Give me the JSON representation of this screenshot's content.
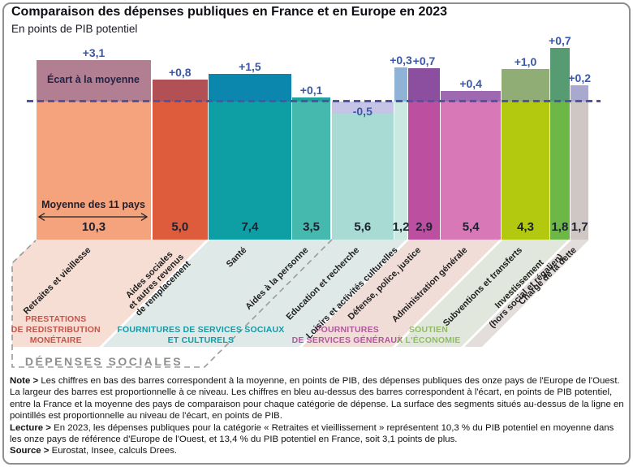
{
  "header": {
    "title": "Comparaison des dépenses publiques en France et en Europe en 2023",
    "subtitle": "En points de PIB potentiel"
  },
  "chart_data": {
    "type": "bar",
    "title": "Comparaison des dépenses publiques en France et en Europe en 2023",
    "subtitle": "En points de PIB potentiel",
    "unit": "points de PIB potentiel",
    "gap_label": "Écart à la moyenne",
    "mean_label": "Moyenne des 11 pays",
    "meta_label": "DÉPENSES SOCIALES",
    "mean_line_color": "#5055a0",
    "gap_text_color": "#3a57a8",
    "categories": [
      {
        "id": "retraites",
        "label_lines": [
          "Retraites et vieillesse"
        ],
        "mean": 10.3,
        "mean_display": "10,3",
        "gap": 3.1,
        "gap_display": "+3,1",
        "color": "#F4A37D",
        "gap_color": "#B17E92"
      },
      {
        "id": "aides-sociales",
        "label_lines": [
          "Aides sociales",
          "et autres revenus",
          "de remplacement"
        ],
        "mean": 5.0,
        "mean_display": "5,0",
        "gap": 0.8,
        "gap_display": "+0,8",
        "color": "#DE5B3C",
        "gap_color": "#B15055"
      },
      {
        "id": "sante",
        "label_lines": [
          "Santé"
        ],
        "mean": 7.4,
        "mean_display": "7,4",
        "gap": 1.5,
        "gap_display": "+1,5",
        "color": "#0D9FA3",
        "gap_color": "#0B86AC"
      },
      {
        "id": "aides-personne",
        "label_lines": [
          "Aides à la personne"
        ],
        "mean": 3.5,
        "mean_display": "3,5",
        "gap": 0.1,
        "gap_display": "+0,1",
        "color": "#45B9AE",
        "gap_color": "#21A09F"
      },
      {
        "id": "education",
        "label_lines": [
          "Education et recherche"
        ],
        "mean": 5.6,
        "mean_display": "5,6",
        "gap": -0.5,
        "gap_display": "-0,5",
        "color": "#A7DBD3",
        "gap_color": "#C6C4E6"
      },
      {
        "id": "loisirs",
        "label_lines": [
          "Loisirs et activités culturelles"
        ],
        "mean": 1.2,
        "mean_display": "1,2",
        "gap": 0.3,
        "gap_display": "+0,3",
        "color": "#CBE9E1",
        "gap_color": "#8FB3D6"
      },
      {
        "id": "defense",
        "label_lines": [
          "Défense, police, justice"
        ],
        "mean": 2.9,
        "mean_display": "2,9",
        "gap": 0.7,
        "gap_display": "+0,7",
        "color": "#BC4F9F",
        "gap_color": "#8C4E9F"
      },
      {
        "id": "administration",
        "label_lines": [
          "Administration générale"
        ],
        "mean": 5.4,
        "mean_display": "5,4",
        "gap": 0.4,
        "gap_display": "+0,4",
        "color": "#D878B6",
        "gap_color": "#9E69B0"
      },
      {
        "id": "subventions",
        "label_lines": [
          "Subventions et transferts"
        ],
        "mean": 4.3,
        "mean_display": "4,3",
        "gap": 1.0,
        "gap_display": "+1,0",
        "color": "#B2C90F",
        "gap_color": "#8FAD74"
      },
      {
        "id": "investissement",
        "label_lines": [
          "Investissement",
          "(hors social et régalien)"
        ],
        "mean": 1.8,
        "mean_display": "1,8",
        "gap": 0.7,
        "gap_display": "+0,7",
        "color": "#6DB747",
        "gap_color": "#569B71"
      },
      {
        "id": "charge-dette",
        "label_lines": [
          "Charge de la dette"
        ],
        "mean": 1.7,
        "mean_display": "1,7",
        "gap": 0.2,
        "gap_display": "+0,2",
        "color": "#CFC7C3",
        "gap_color": "#A9A8CE"
      }
    ],
    "groups": [
      {
        "id": "prestations",
        "title_lines": [
          "PRESTATIONS",
          "DE REDISTRIBUTION",
          "MONÉTAIRE"
        ],
        "title_color": "#C5554A",
        "ribbon_color": "#F6DED4",
        "from": 0,
        "to": 1
      },
      {
        "id": "services-sociaux",
        "title_lines": [
          "FOURNITURES DE SERVICES SOCIAUX",
          "ET CULTURELS"
        ],
        "title_color": "#1599A5",
        "ribbon_color": "#DFE9E8",
        "from": 2,
        "to": 5
      },
      {
        "id": "services-generaux",
        "title_lines": [
          "FOURNITURES",
          "DE SERVICES GÉNÉRAUX"
        ],
        "title_color": "#B1569D",
        "ribbon_color": "#F1DDD7",
        "from": 6,
        "to": 7
      },
      {
        "id": "soutien-economie",
        "title_lines": [
          "SOUTIEN",
          "À L'ÉCONOMIE"
        ],
        "title_color": "#8FBE5E",
        "ribbon_color": "#E1E7DC",
        "from": 8,
        "to": 9
      },
      {
        "id": "dette",
        "title_lines": [],
        "title_color": "",
        "ribbon_color": "#E3DEDC",
        "from": 10,
        "to": 10
      }
    ]
  },
  "notes": [
    {
      "prefix": "Note >",
      "text": "Les chiffres en bas des barres correspondent à la moyenne, en points de PIB, des dépenses publiques des onze pays de l'Europe de l'Ouest. La largeur des barres est proportionnelle à ce niveau. Les chiffres en bleu au-dessus des barres correspondent à l'écart, en points de PIB potentiel, entre la France et la moyenne des pays de comparaison pour chaque catégorie de dépense. La surface des segments situés au-dessus de la ligne en pointillés est proportionnelle au niveau de l'écart, en points de PIB."
    },
    {
      "prefix": "Lecture >",
      "text": "En 2023, les dépenses publiques pour la catégorie « Retraites et vieillissement » représentent 10,3 % du PIB potentiel en moyenne dans les onze pays de référence d'Europe de l'Ouest, et 13,4 % du PIB potentiel en France, soit 3,1 points de plus."
    },
    {
      "prefix": "Source >",
      "text": "Eurostat, Insee, calculs Drees."
    }
  ]
}
